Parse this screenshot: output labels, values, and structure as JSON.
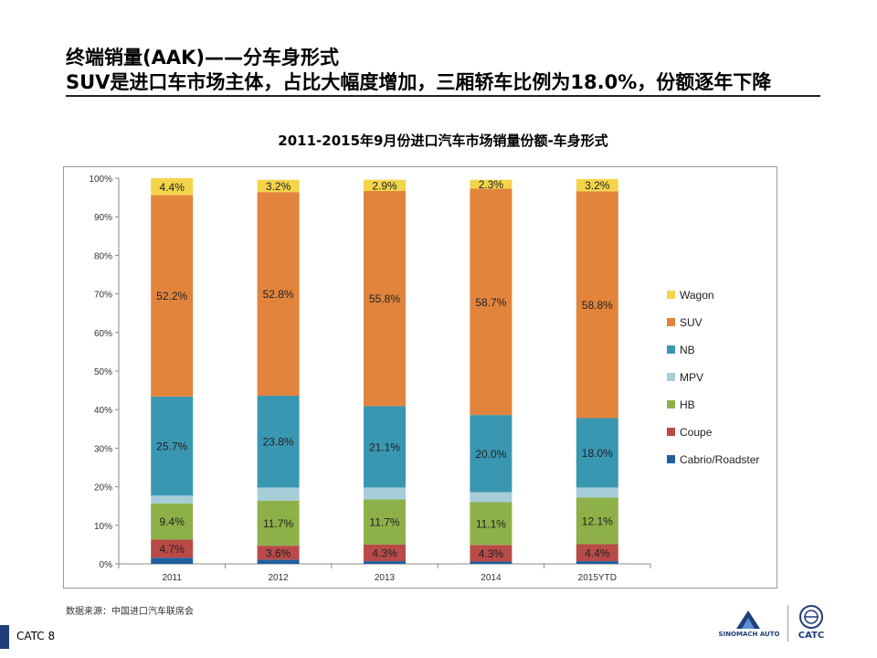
{
  "slide": {
    "title_line1": "终端销量(AAK)——分车身形式",
    "title_line2": "SUV是进口车市场主体，占比大幅度增加，三厢轿车比例为18.0%，份额逐年下降",
    "source": "数据来源：中国进口汽车联席会",
    "footer_label": "CATC  8",
    "logo_sinomach_text": "SINOMACH AUTO",
    "logo_catc_text": "CATC"
  },
  "chart_data": {
    "type": "bar",
    "stacked": true,
    "title": "2011-2015年9月份进口汽车市场销量份额-车身形式",
    "categories": [
      "2011",
      "2012",
      "2013",
      "2014",
      "2015YTD"
    ],
    "ylim": [
      0,
      100
    ],
    "yticks": [
      "0%",
      "10%",
      "20%",
      "30%",
      "40%",
      "50%",
      "60%",
      "70%",
      "80%",
      "90%",
      "100%"
    ],
    "legend_position": "right",
    "series": [
      {
        "name": "Cabrio/Roadster",
        "color": "#1f5f9f",
        "values": [
          1.6,
          1.1,
          0.7,
          0.6,
          0.7
        ],
        "labels": [
          "",
          "",
          "",
          "",
          ""
        ]
      },
      {
        "name": "Coupe",
        "color": "#b94a48",
        "values": [
          4.7,
          3.6,
          4.3,
          4.3,
          4.4
        ],
        "labels": [
          "4.7%",
          "3.6%",
          "4.3%",
          "4.3%",
          "4.4%"
        ]
      },
      {
        "name": "HB",
        "color": "#8eb049",
        "values": [
          9.4,
          11.7,
          11.7,
          11.1,
          12.1
        ],
        "labels": [
          "9.4%",
          "11.7%",
          "11.7%",
          "11.1%",
          "12.1%"
        ]
      },
      {
        "name": "MPV",
        "color": "#a6cdd8",
        "values": [
          2.0,
          3.4,
          3.1,
          2.6,
          2.6
        ],
        "labels": [
          "",
          "",
          "",
          "",
          ""
        ]
      },
      {
        "name": "NB",
        "color": "#3a97b2",
        "values": [
          25.7,
          23.8,
          21.1,
          20.0,
          18.0
        ],
        "labels": [
          "25.7%",
          "23.8%",
          "21.1%",
          "20.0%",
          "18.0%"
        ]
      },
      {
        "name": "SUV",
        "color": "#e2843c",
        "values": [
          52.2,
          52.8,
          55.8,
          58.7,
          58.8
        ],
        "labels": [
          "52.2%",
          "52.8%",
          "55.8%",
          "58.7%",
          "58.8%"
        ]
      },
      {
        "name": "Wagon",
        "color": "#f4d54a",
        "values": [
          4.4,
          3.2,
          2.9,
          2.3,
          3.2
        ],
        "labels": [
          "4.4%",
          "3.2%",
          "2.9%",
          "2.3%",
          "3.2%"
        ]
      }
    ],
    "legend_order": [
      "Wagon",
      "SUV",
      "NB",
      "MPV",
      "HB",
      "Coupe",
      "Cabrio/Roadster"
    ]
  }
}
